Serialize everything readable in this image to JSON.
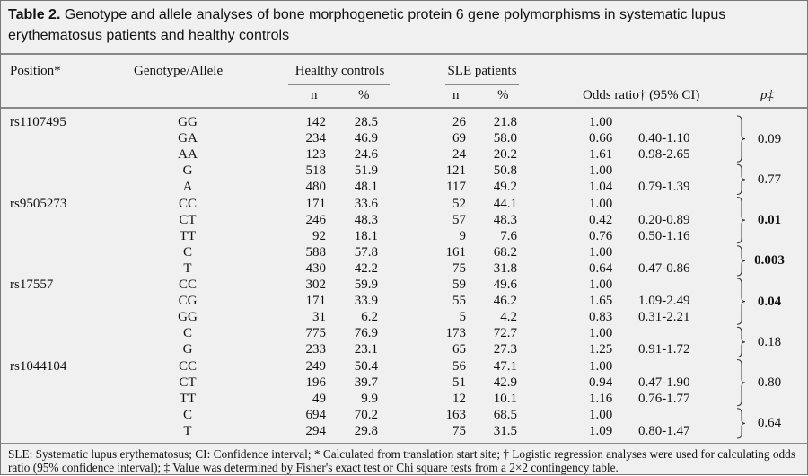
{
  "title": {
    "label": "Table 2.",
    "text": "Genotype and allele analyses of bone morphogenetic protein 6 gene polymorphisms in systematic lupus erythematosus patients and healthy controls"
  },
  "header": {
    "position": "Position*",
    "genotype": "Genotype/Allele",
    "healthy": "Healthy controls",
    "sle": "SLE patients",
    "n": "n",
    "pct": "%",
    "or": "Odds ratio† (95% CI)",
    "p": "p‡"
  },
  "rows": [
    {
      "pos": "rs1107495",
      "g": "GG",
      "hn": "142",
      "hp": "28.5",
      "sn": "26",
      "sp": "21.8",
      "or": "1.00",
      "ci": ""
    },
    {
      "pos": "",
      "g": "GA",
      "hn": "234",
      "hp": "46.9",
      "sn": "69",
      "sp": "58.0",
      "or": "0.66",
      "ci": "0.40-1.10"
    },
    {
      "pos": "",
      "g": "AA",
      "hn": "123",
      "hp": "24.6",
      "sn": "24",
      "sp": "20.2",
      "or": "1.61",
      "ci": "0.98-2.65"
    },
    {
      "pos": "",
      "g": "G",
      "hn": "518",
      "hp": "51.9",
      "sn": "121",
      "sp": "50.8",
      "or": "1.00",
      "ci": ""
    },
    {
      "pos": "",
      "g": "A",
      "hn": "480",
      "hp": "48.1",
      "sn": "117",
      "sp": "49.2",
      "or": "1.04",
      "ci": "0.79-1.39"
    },
    {
      "pos": "rs9505273",
      "g": "CC",
      "hn": "171",
      "hp": "33.6",
      "sn": "52",
      "sp": "44.1",
      "or": "1.00",
      "ci": ""
    },
    {
      "pos": "",
      "g": "CT",
      "hn": "246",
      "hp": "48.3",
      "sn": "57",
      "sp": "48.3",
      "or": "0.42",
      "ci": "0.20-0.89"
    },
    {
      "pos": "",
      "g": "TT",
      "hn": "92",
      "hp": "18.1",
      "sn": "9",
      "sp": "7.6",
      "or": "0.76",
      "ci": "0.50-1.16"
    },
    {
      "pos": "",
      "g": "C",
      "hn": "588",
      "hp": "57.8",
      "sn": "161",
      "sp": "68.2",
      "or": "1.00",
      "ci": ""
    },
    {
      "pos": "",
      "g": "T",
      "hn": "430",
      "hp": "42.2",
      "sn": "75",
      "sp": "31.8",
      "or": "0.64",
      "ci": "0.47-0.86"
    },
    {
      "pos": "rs17557",
      "g": "CC",
      "hn": "302",
      "hp": "59.9",
      "sn": "59",
      "sp": "49.6",
      "or": "1.00",
      "ci": ""
    },
    {
      "pos": "",
      "g": "CG",
      "hn": "171",
      "hp": "33.9",
      "sn": "55",
      "sp": "46.2",
      "or": "1.65",
      "ci": "1.09-2.49"
    },
    {
      "pos": "",
      "g": "GG",
      "hn": "31",
      "hp": "6.2",
      "sn": "5",
      "sp": "4.2",
      "or": "0.83",
      "ci": "0.31-2.21"
    },
    {
      "pos": "",
      "g": "C",
      "hn": "775",
      "hp": "76.9",
      "sn": "173",
      "sp": "72.7",
      "or": "1.00",
      "ci": ""
    },
    {
      "pos": "",
      "g": "G",
      "hn": "233",
      "hp": "23.1",
      "sn": "65",
      "sp": "27.3",
      "or": "1.25",
      "ci": "0.91-1.72"
    },
    {
      "pos": "rs1044104",
      "g": "CC",
      "hn": "249",
      "hp": "50.4",
      "sn": "56",
      "sp": "47.1",
      "or": "1.00",
      "ci": ""
    },
    {
      "pos": "",
      "g": "CT",
      "hn": "196",
      "hp": "39.7",
      "sn": "51",
      "sp": "42.9",
      "or": "0.94",
      "ci": "0.47-1.90"
    },
    {
      "pos": "",
      "g": "TT",
      "hn": "49",
      "hp": "9.9",
      "sn": "12",
      "sp": "10.1",
      "or": "1.16",
      "ci": "0.76-1.77"
    },
    {
      "pos": "",
      "g": "C",
      "hn": "694",
      "hp": "70.2",
      "sn": "163",
      "sp": "68.5",
      "or": "1.00",
      "ci": ""
    },
    {
      "pos": "",
      "g": "T",
      "hn": "294",
      "hp": "29.8",
      "sn": "75",
      "sp": "31.5",
      "or": "1.09",
      "ci": "0.80-1.47"
    }
  ],
  "groups": [
    {
      "start": 0,
      "count": 3,
      "p": "0.09",
      "bold": false
    },
    {
      "start": 3,
      "count": 2,
      "p": "0.77",
      "bold": false
    },
    {
      "start": 5,
      "count": 3,
      "p": "0.01",
      "bold": true
    },
    {
      "start": 8,
      "count": 2,
      "p": "0.003",
      "bold": true
    },
    {
      "start": 10,
      "count": 3,
      "p": "0.04",
      "bold": true
    },
    {
      "start": 13,
      "count": 2,
      "p": "0.18",
      "bold": false
    },
    {
      "start": 15,
      "count": 3,
      "p": "0.80",
      "bold": false
    },
    {
      "start": 18,
      "count": 2,
      "p": "0.64",
      "bold": false
    }
  ],
  "footnote": "SLE: Systematic lupus erythematosus; CI: Confidence interval; * Calculated from translation start site; † Logistic regression analyses were used for calculating odds ratio (95% confidence interval); ‡ Value was determined by Fisher's exact test or Chi square tests from a 2×2 contingency table."
}
